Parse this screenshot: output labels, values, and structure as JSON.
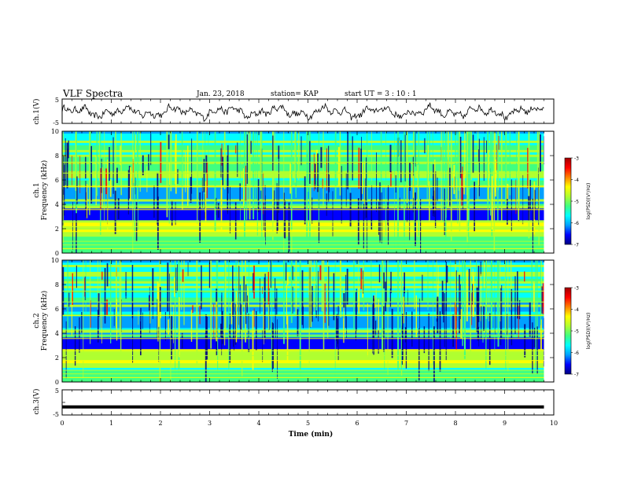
{
  "header": {
    "title": "VLF Spectra",
    "date": "Jan. 23, 2018",
    "station": "station= KAP",
    "start_ut": "start UT =  3 : 10 : 1"
  },
  "chart_data": [
    {
      "type": "line",
      "panel": "ch1-waveform",
      "ylabel": "ch.1(V)",
      "ylim": [
        -5,
        5
      ],
      "yticks": [
        "5",
        "-5"
      ],
      "xlim": [
        0,
        10
      ],
      "color": "#000000"
    },
    {
      "type": "heatmap",
      "panel": "ch1-spectrogram",
      "ylabel_top": "ch.1",
      "ylabel": "Frequency (kHz)",
      "ylim": [
        0,
        10
      ],
      "yticks": [
        "0",
        "2",
        "4",
        "6",
        "8",
        "10"
      ],
      "xlim": [
        0,
        10
      ],
      "colorbar": {
        "label": "log(PSD)(V²/Hz)",
        "range": [
          -7,
          -3
        ],
        "ticks": [
          "-3",
          "-4",
          "-5",
          "-6",
          "-7"
        ],
        "colormap": [
          "#000080",
          "#0000ff",
          "#00a0ff",
          "#00ffff",
          "#40ff80",
          "#b0ff30",
          "#ffff00",
          "#ff8000",
          "#ff0000",
          "#a00000"
        ]
      }
    },
    {
      "type": "heatmap",
      "panel": "ch2-spectrogram",
      "ylabel_top": "ch.2",
      "ylabel": "Frequency (kHz)",
      "ylim": [
        0,
        10
      ],
      "yticks": [
        "0",
        "2",
        "4",
        "6",
        "8",
        "10"
      ],
      "xlim": [
        0,
        10
      ],
      "colorbar": {
        "label": "log(PSD)(V²/Hz)",
        "range": [
          -7,
          -3
        ],
        "ticks": [
          "-3",
          "-4",
          "-5",
          "-6",
          "-7"
        ],
        "colormap": [
          "#000080",
          "#0000ff",
          "#00a0ff",
          "#00ffff",
          "#40ff80",
          "#b0ff30",
          "#ffff00",
          "#ff8000",
          "#ff0000",
          "#a00000"
        ]
      }
    },
    {
      "type": "line",
      "panel": "ch3-waveform",
      "ylabel": "ch.3(V)",
      "ylim": [
        -5,
        5
      ],
      "yticks": [
        "5",
        "0",
        "-5"
      ],
      "xlim": [
        0,
        10
      ],
      "constant_value": -1.8,
      "data_end_x": 9.8
    }
  ],
  "xaxis": {
    "label": "Time (min)",
    "ticks": [
      "0",
      "1",
      "2",
      "3",
      "4",
      "5",
      "6",
      "7",
      "8",
      "9",
      "10"
    ]
  }
}
